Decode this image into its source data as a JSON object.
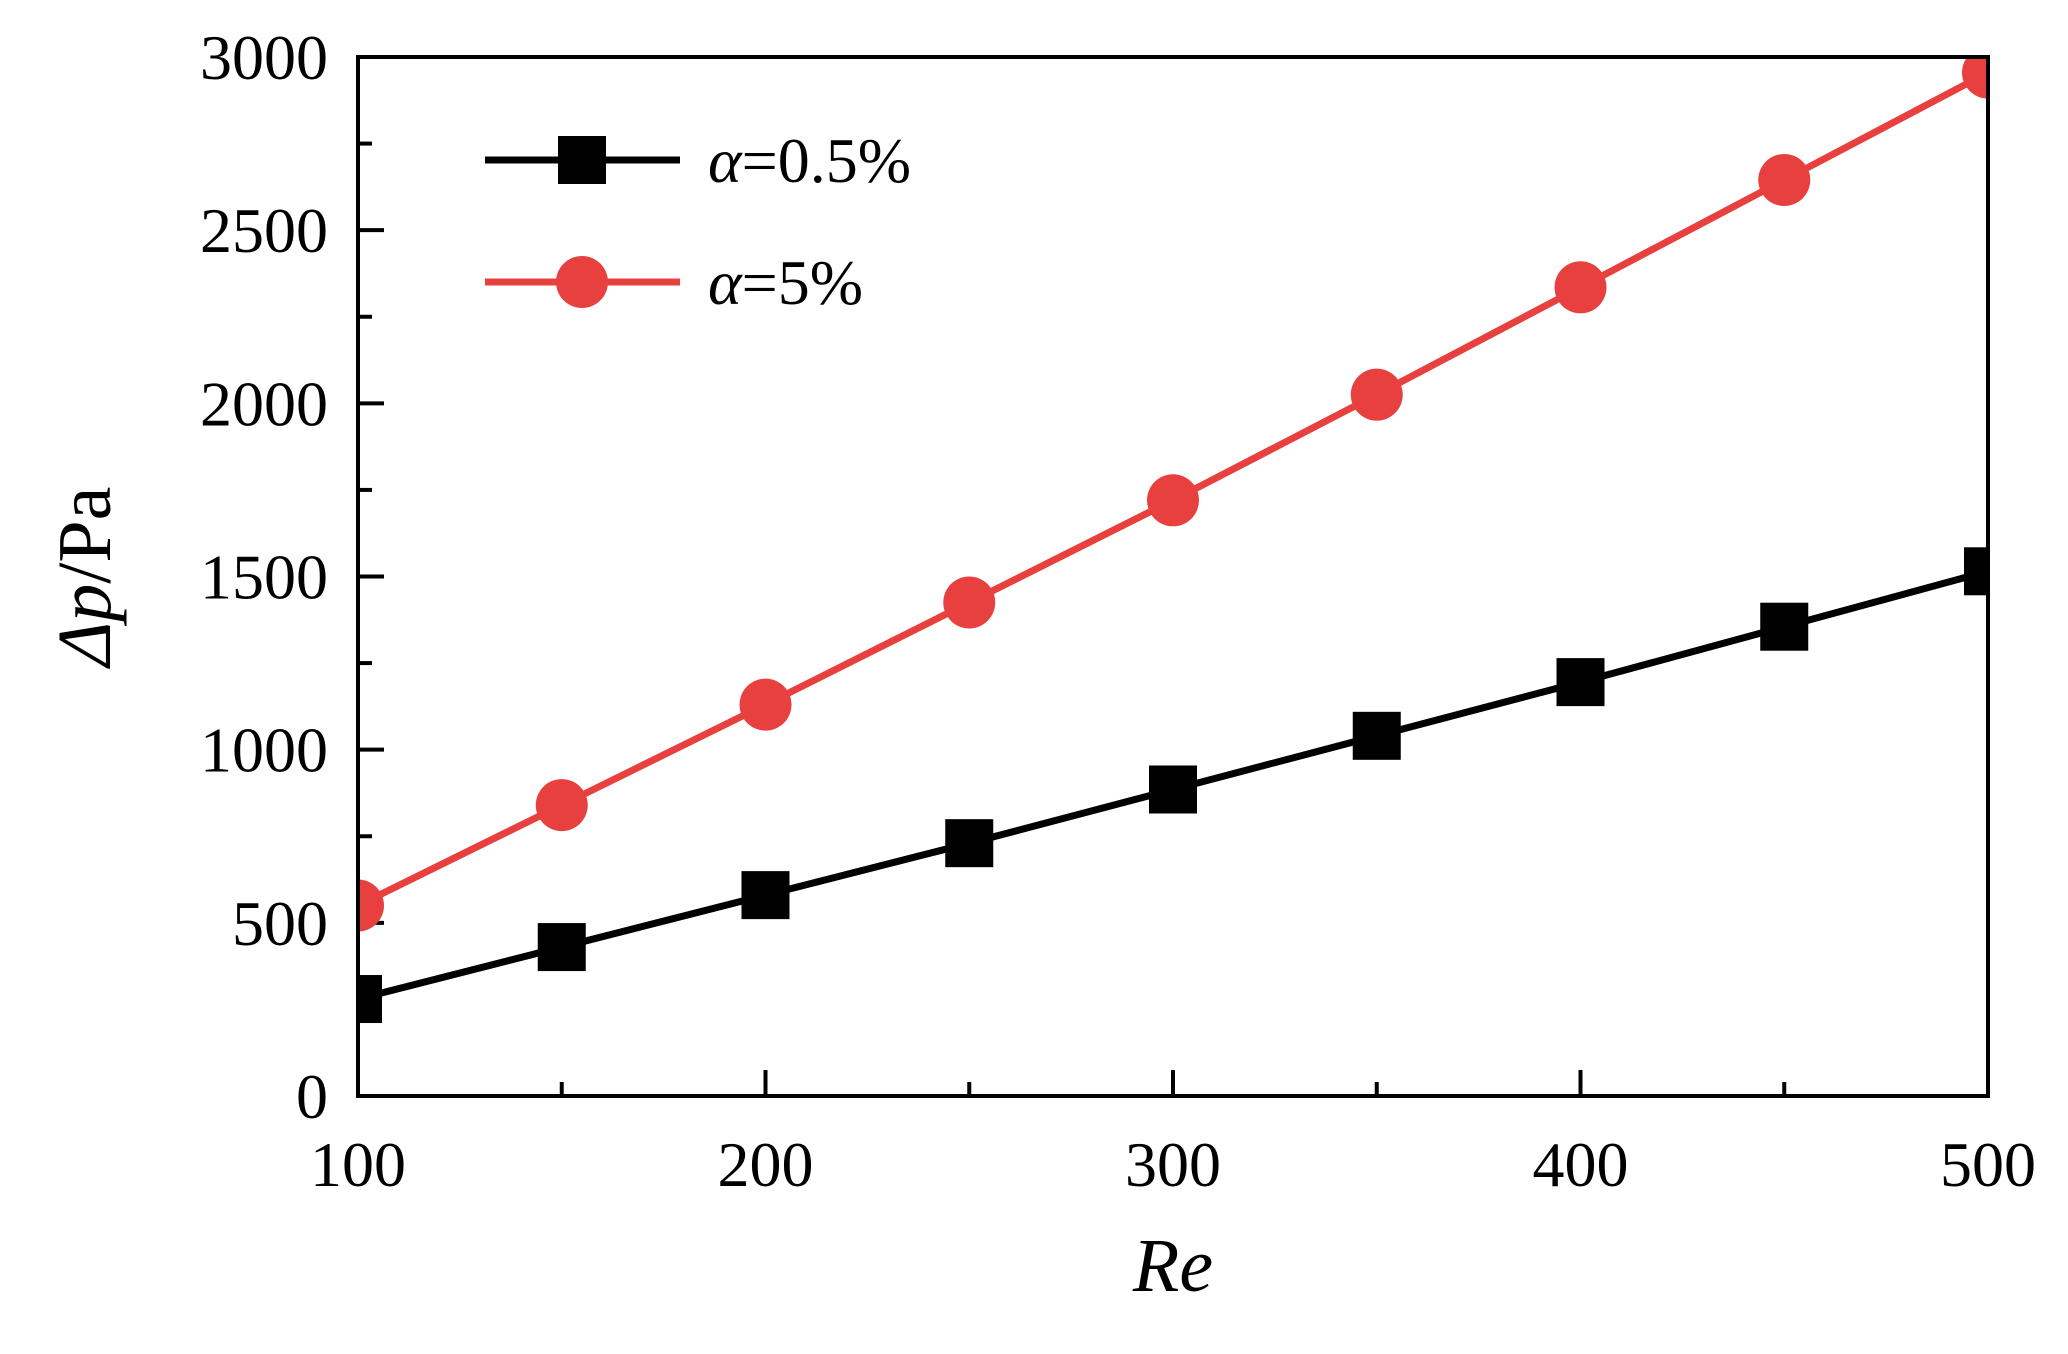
{
  "chart_data": {
    "type": "line",
    "title": "",
    "xlabel": "Re",
    "ylabel_symbol": "Δp",
    "ylabel_unit": "/Pa",
    "xlim": [
      100,
      500
    ],
    "ylim": [
      0,
      3000
    ],
    "x_ticks": [
      100,
      200,
      300,
      400,
      500
    ],
    "x_minor_ticks": [
      150,
      250,
      350,
      450
    ],
    "y_ticks": [
      0,
      500,
      1000,
      1500,
      2000,
      2500,
      3000
    ],
    "y_minor_ticks": [
      250,
      750,
      1250,
      1750,
      2250,
      2750
    ],
    "grid": false,
    "legend_position": "top-left",
    "x": [
      100,
      150,
      200,
      250,
      300,
      350,
      400,
      450,
      500
    ],
    "series": [
      {
        "name": "α=0.5%",
        "symbol": "α",
        "value_text": "=0.5%",
        "color": "#000000",
        "marker": "square",
        "values": [
          280,
          430,
          580,
          730,
          885,
          1040,
          1195,
          1355,
          1515
        ]
      },
      {
        "name": "α=5%",
        "symbol": "α",
        "value_text": "=5%",
        "color": "#e8403f",
        "marker": "circle",
        "values": [
          550,
          840,
          1130,
          1425,
          1720,
          2025,
          2335,
          2645,
          2955
        ]
      }
    ]
  }
}
